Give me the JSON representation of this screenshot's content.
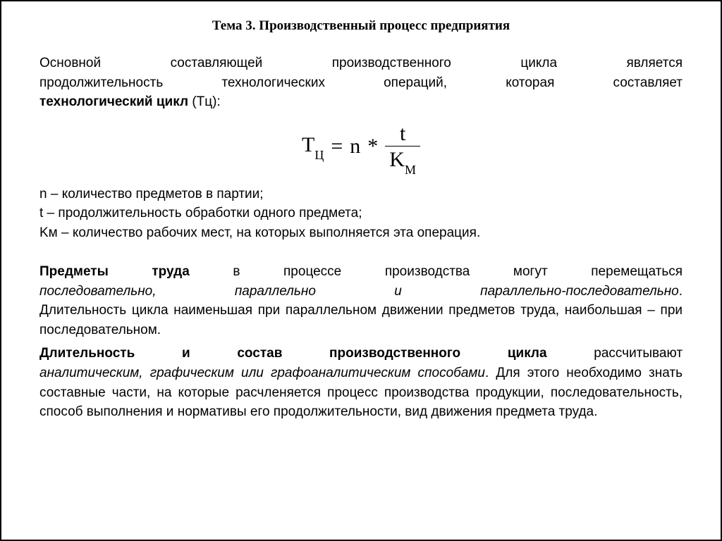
{
  "title": "Тема 3. Производственный процесс предприятия",
  "p1": {
    "l1a": "Основной",
    "l1b": "составляющей",
    "l1c": "производственного",
    "l1d": "цикла",
    "l1e": "является",
    "l2a": "продолжительность",
    "l2b": "технологических",
    "l2c": "операций,",
    "l2d": "которая",
    "l2e": "составляет",
    "l3bold": "технологический цикл",
    "l3rest": " (Тц):"
  },
  "formula": {
    "T": "Т",
    "Tsub": "Ц",
    "eq": "=",
    "n": "n",
    "star": "*",
    "num": "t",
    "denK": "K",
    "denKsub": "М"
  },
  "defs": {
    "d1": "n – количество предметов в партии;",
    "d2": "t – продолжительность обработки одного предмета;",
    "d3": "Kм – количество рабочих мест, на которых выполняется эта операция."
  },
  "p2": {
    "l1a_b": "Предметы",
    "l1b_b": "труда",
    "l1c": "в",
    "l1d": "процессе",
    "l1e": "производства",
    "l1f": "могут",
    "l1g": "перемещаться",
    "l2a_i": "последовательно,",
    "l2b_i": "параллельно",
    "l2c_i": "и",
    "l2d_i": "параллельно-последовательно",
    "l2end": ".",
    "l3": "Длительность цикла наименьшая при параллельном движении предметов труда, наибольшая – при последовательном."
  },
  "p3": {
    "l1a_b": "Длительность",
    "l1b_b": "и",
    "l1c_b": "состав",
    "l1d_b": "производственного",
    "l1e_b": "цикла",
    "l1f": "рассчитывают",
    "l2_i": "аналитическим, графическим или графоаналитическим способами",
    "l2end": ". Для этого",
    "rest": "необходимо знать составные части, на которые расчленяется процесс производства продукции, последовательность, способ выполнения и нормативы его продолжительности, вид движения предмета труда."
  }
}
